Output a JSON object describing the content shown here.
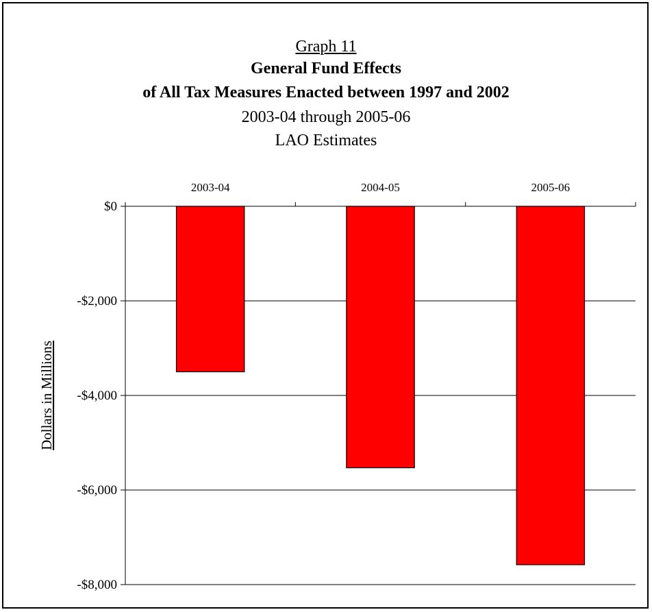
{
  "figure": {
    "graph_label": "Graph 11",
    "title_line1": "General Fund Effects",
    "title_line2": "of All Tax Measures Enacted between 1997 and 2002",
    "subtitle_line1": "2003-04 through 2005-06",
    "subtitle_line2": "LAO Estimates"
  },
  "chart_data": {
    "type": "bar",
    "categories": [
      "2003-04",
      "2004-05",
      "2005-06"
    ],
    "values": [
      -3500,
      -5530,
      -7580
    ],
    "ylabel": "Dollars in Millions",
    "ylim": [
      -8000,
      0
    ],
    "yticks": [
      0,
      -2000,
      -4000,
      -6000,
      -8000
    ],
    "ytick_labels": [
      "$0",
      "-$2,000",
      "-$4,000",
      "-$6,000",
      "-$8,000"
    ],
    "category_axis_position": "top",
    "grid": true,
    "bar_color": "#ff0000",
    "bar_edge_color": "#000000"
  }
}
